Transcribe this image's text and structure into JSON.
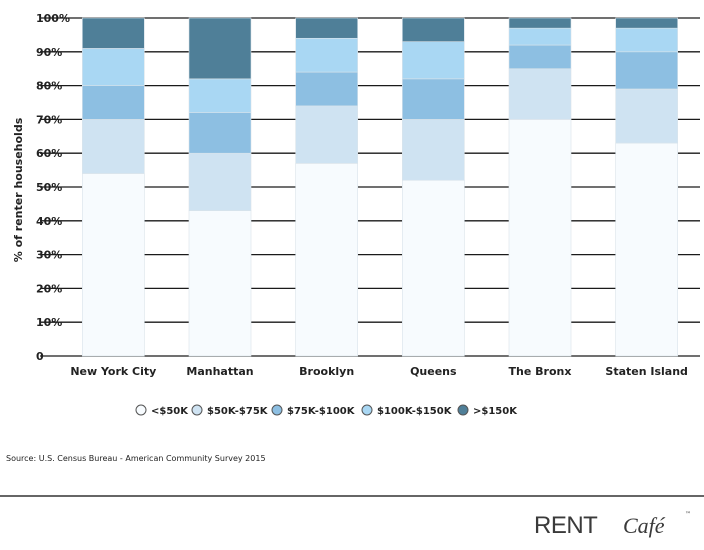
{
  "chart_data": {
    "type": "bar",
    "stacked": true,
    "orientation": "vertical",
    "title": "",
    "xlabel": "",
    "ylabel": "% of renter households",
    "ylim": [
      0,
      100
    ],
    "y_ticks": [
      "0",
      "10%",
      "20%",
      "30%",
      "40%",
      "50%",
      "60%",
      "70%",
      "80%",
      "90%",
      "100%"
    ],
    "grid": true,
    "legend_position": "bottom",
    "categories": [
      "New York City",
      "Manhattan",
      "Brooklyn",
      "Queens",
      "The Bronx",
      "Staten Island"
    ],
    "series": [
      {
        "name": "<$50K",
        "color": "#f7fbfe",
        "values": [
          54,
          43,
          57,
          52,
          70,
          63
        ]
      },
      {
        "name": "$50K-$75K",
        "color": "#cfe3f2",
        "values": [
          16,
          17,
          17,
          18,
          15,
          16
        ]
      },
      {
        "name": "$75K-$100K",
        "color": "#8dbfe2",
        "values": [
          10,
          12,
          10,
          12,
          7,
          11
        ]
      },
      {
        "name": "$100K-$150K",
        "color": "#a9d7f3",
        "values": [
          11,
          10,
          10,
          11,
          5,
          7
        ]
      },
      {
        "name": ">$150K",
        "color": "#4f7f98",
        "values": [
          9,
          18,
          6,
          7,
          3,
          3
        ]
      }
    ]
  },
  "source": "Source: U.S. Census Bureau - American Community Survey 2015",
  "brand": {
    "main": "RENT",
    "script": "Café",
    "tm": "™"
  }
}
